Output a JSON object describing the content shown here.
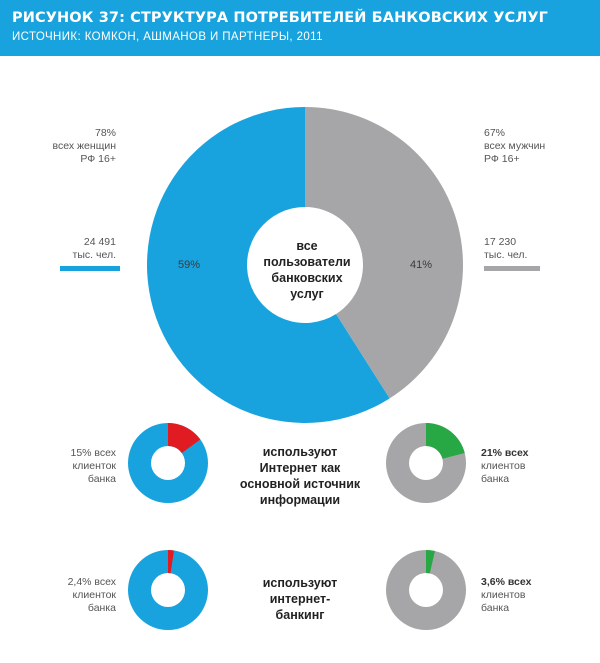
{
  "header": {
    "title": "РИСУНОК 37: СТРУКТУРА ПОТРЕБИТЕЛЕЙ БАНКОВСКИХ УСЛУГ",
    "source": "ИСТОЧНИК: КОМКОН, АШМАНОВ И ПАРТНЕРЫ, 2011"
  },
  "colors": {
    "women": "#19a3de",
    "men": "#a6a6a8",
    "internet_info": "#e11b22",
    "internet_banking_men": "#27a844"
  },
  "main": {
    "center_text": [
      "все",
      "пользователи",
      "банковских",
      "услуг"
    ],
    "women": {
      "pct_line": "78%",
      "desc_line1": "всех женщин",
      "desc_line2": "РФ 16+",
      "count": "24 491",
      "unit": "тыс. чел."
    },
    "men": {
      "pct_line": "67%",
      "desc_line1": "всех мужчин",
      "desc_line2": "РФ 16+",
      "count": "17 230",
      "unit": "тыс. чел."
    },
    "slice_labels": {
      "women": "59%",
      "men": "41%"
    }
  },
  "row1": {
    "center_lines": [
      "используют",
      "Интернет как",
      "основной источник",
      "информации"
    ],
    "left_lines": [
      "15% всех",
      "клиенток",
      "банка"
    ],
    "right_lines": [
      "21% всех",
      "клиентов",
      "банка"
    ]
  },
  "row2": {
    "center_lines": [
      "используют",
      "интернет-",
      "банкинг"
    ],
    "left_lines": [
      "2,4% всех",
      "клиенток",
      "банка"
    ],
    "right_lines": [
      "3,6% всех",
      "клиентов",
      "банка"
    ]
  },
  "chart_data": [
    {
      "type": "pie",
      "title": "все пользователи банковских услуг",
      "labels": [
        "женщины",
        "мужчины"
      ],
      "values": [
        59,
        41
      ],
      "counts_thousands": [
        24491,
        17230
      ],
      "share_of_population_16plus": [
        78,
        67
      ]
    },
    {
      "type": "pie",
      "title": "используют Интернет как основной источник информации",
      "series": [
        {
          "name": "клиентки банка",
          "value": 15
        },
        {
          "name": "клиенты банка",
          "value": 21
        }
      ]
    },
    {
      "type": "pie",
      "title": "используют интернет-банкинг",
      "series": [
        {
          "name": "клиентки банка",
          "value": 2.4
        },
        {
          "name": "клиенты банка",
          "value": 3.6
        }
      ]
    }
  ]
}
